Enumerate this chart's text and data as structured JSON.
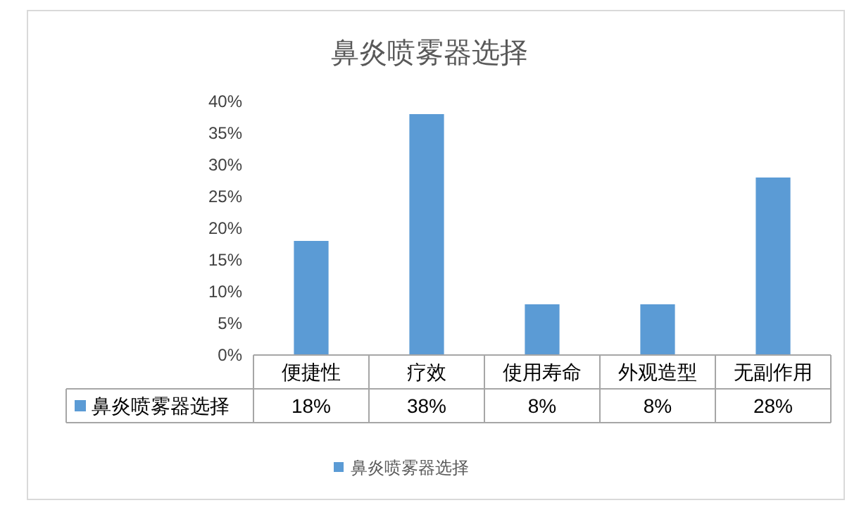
{
  "chart_data": {
    "type": "bar",
    "title": "鼻炎喷雾器选择",
    "categories": [
      "便捷性",
      "疗效",
      "使用寿命",
      "外观造型",
      "无副作用"
    ],
    "series": [
      {
        "name": "鼻炎喷雾器选择",
        "color": "#5b9bd5",
        "values": [
          18,
          38,
          8,
          8,
          28
        ],
        "value_labels": [
          "18%",
          "38%",
          "8%",
          "8%",
          "28%"
        ]
      }
    ],
    "ylim": [
      0,
      40
    ],
    "yticks": [
      {
        "value": 0,
        "label": "0%"
      },
      {
        "value": 5,
        "label": "5%"
      },
      {
        "value": 10,
        "label": "10%"
      },
      {
        "value": 15,
        "label": "15%"
      },
      {
        "value": 20,
        "label": "20%"
      },
      {
        "value": 25,
        "label": "25%"
      },
      {
        "value": 30,
        "label": "30%"
      },
      {
        "value": 35,
        "label": "35%"
      },
      {
        "value": 40,
        "label": "40%"
      }
    ],
    "legend": "bottom"
  }
}
